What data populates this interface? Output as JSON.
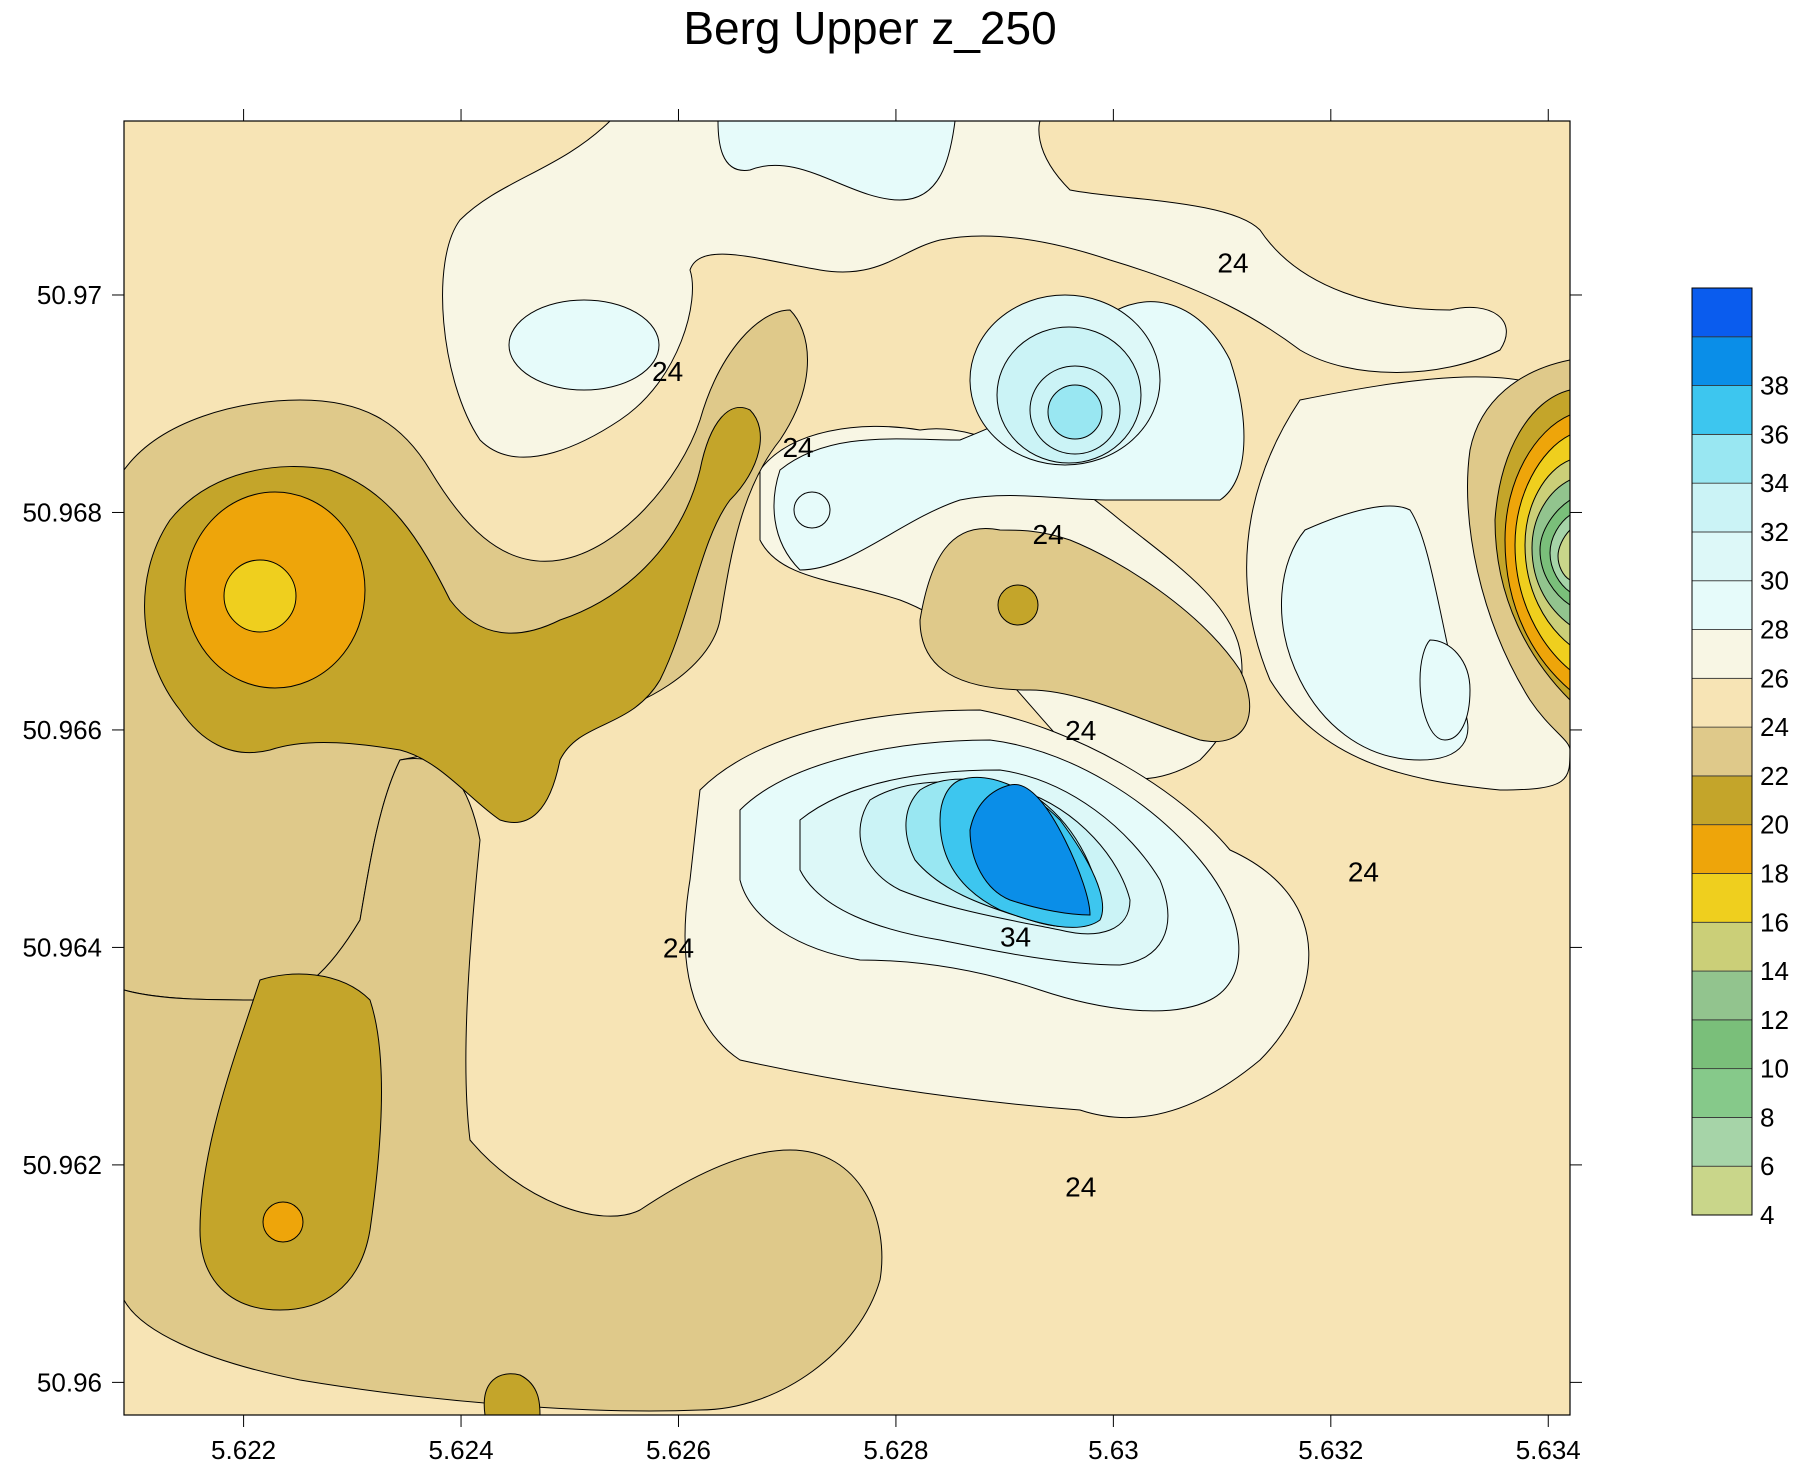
{
  "chart_data": {
    "type": "heatmap",
    "subtype": "filled-contour",
    "title": "Berg Upper z_250",
    "xlabel": "",
    "ylabel": "",
    "xlim": [
      5.6209,
      5.6342
    ],
    "ylim": [
      50.9597,
      50.9716
    ],
    "x_ticks": [
      5.622,
      5.624,
      5.626,
      5.628,
      5.63,
      5.632,
      5.634
    ],
    "x_tick_labels": [
      "5.622",
      "5.624",
      "5.626",
      "5.628",
      "5.63",
      "5.632",
      "5.634"
    ],
    "y_ticks": [
      50.96,
      50.962,
      50.964,
      50.966,
      50.968,
      50.97
    ],
    "y_tick_labels": [
      "50.96",
      "50.962",
      "50.964",
      "50.966",
      "50.968",
      "50.97"
    ],
    "grid": false,
    "colorbar": {
      "placement": "right",
      "levels": [
        4,
        6,
        8,
        10,
        12,
        14,
        16,
        18,
        20,
        22,
        24,
        26,
        28,
        30,
        32,
        34,
        36,
        38
      ],
      "labels": [
        "4",
        "6",
        "8",
        "10",
        "12",
        "14",
        "16",
        "18",
        "20",
        "22",
        "24",
        "26",
        "28",
        "30",
        "32",
        "34",
        "36",
        "38"
      ],
      "colors": [
        "#c9d68a",
        "#a6d4a8",
        "#86c98a",
        "#7abf7a",
        "#92c48e",
        "#cbcf78",
        "#efcf1e",
        "#eea50a",
        "#c4a52a",
        "#dfc98a",
        "#f7e4b5",
        "#f8f6e4",
        "#e6fbfa",
        "#ddf8f8",
        "#cbf3f6",
        "#99e7f2",
        "#3dc6ef",
        "#0a8ee8",
        "#0a5cee"
      ]
    },
    "contour_labels": [
      {
        "text": "24",
        "x": 5.6259,
        "y": 50.9693
      },
      {
        "text": "24",
        "x": 5.6271,
        "y": 50.9686
      },
      {
        "text": "24",
        "x": 5.6294,
        "y": 50.9678
      },
      {
        "text": "24",
        "x": 5.6311,
        "y": 50.9703
      },
      {
        "text": "24",
        "x": 5.6297,
        "y": 50.966
      },
      {
        "text": "24",
        "x": 5.626,
        "y": 50.964
      },
      {
        "text": "24",
        "x": 5.6297,
        "y": 50.9618
      },
      {
        "text": "24",
        "x": 5.6323,
        "y": 50.9647
      },
      {
        "text": "34",
        "x": 5.6291,
        "y": 50.9641
      }
    ]
  }
}
